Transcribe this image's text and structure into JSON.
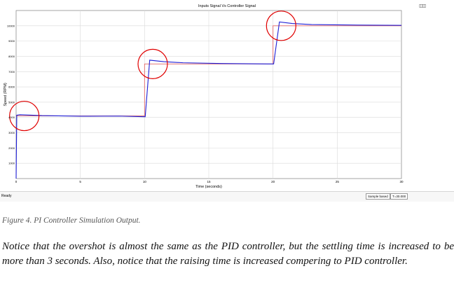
{
  "scope": {
    "title": "Inputs Signal Vs Controller Signal",
    "toolbar_icon": "dock-icon",
    "status_ready": "Ready",
    "status_mode": "Sample based",
    "status_time": "T=30.000"
  },
  "colors": {
    "setpoint": "#e06666",
    "response": "#1f1fd6",
    "highlight_circle": "#e00000",
    "grid": "#dadada"
  },
  "chart_data": {
    "type": "line",
    "title": "Inputs Signal Vs Controller Signal",
    "xlabel": "Time (seconds)",
    "ylabel": "Speed (RPM)",
    "xlim": [
      0,
      30
    ],
    "ylim": [
      0,
      11000
    ],
    "xticks": [
      0,
      5,
      10,
      15,
      20,
      25,
      30
    ],
    "yticks": [
      1000,
      2000,
      3000,
      4000,
      5000,
      6000,
      7000,
      8000,
      9000,
      10000
    ],
    "grid": true,
    "series": [
      {
        "role": "setpoint",
        "color": "#e06666",
        "points": [
          [
            0,
            4100
          ],
          [
            10,
            4100
          ],
          [
            10,
            7500
          ],
          [
            20,
            7500
          ],
          [
            20,
            10000
          ],
          [
            30,
            10000
          ]
        ]
      },
      {
        "role": "response",
        "color": "#1f1fd6",
        "points": [
          [
            0,
            0
          ],
          [
            0.05,
            4150
          ],
          [
            0.3,
            4180
          ],
          [
            2,
            4120
          ],
          [
            5,
            4080
          ],
          [
            8,
            4090
          ],
          [
            10,
            4050
          ],
          [
            10.05,
            4050
          ],
          [
            10.4,
            7750
          ],
          [
            11.5,
            7650
          ],
          [
            13,
            7580
          ],
          [
            16,
            7530
          ],
          [
            20,
            7500
          ],
          [
            20.05,
            7500
          ],
          [
            20.5,
            10250
          ],
          [
            21.5,
            10150
          ],
          [
            23,
            10080
          ],
          [
            26,
            10050
          ],
          [
            30,
            10030
          ]
        ]
      }
    ],
    "annotations": [
      {
        "shape": "circle",
        "x": 0.2,
        "y": 4100
      },
      {
        "shape": "circle",
        "x": 10.2,
        "y": 7500
      },
      {
        "shape": "circle",
        "x": 20.2,
        "y": 10000
      }
    ]
  },
  "caption": "Figure 4. PI Controller Simulation Output.",
  "body_text": "Notice that the overshot is almost the same as the PID controller, but the settling time is increased to be more than 3 seconds. Also, notice that the raising time is increased compering to PID controller."
}
